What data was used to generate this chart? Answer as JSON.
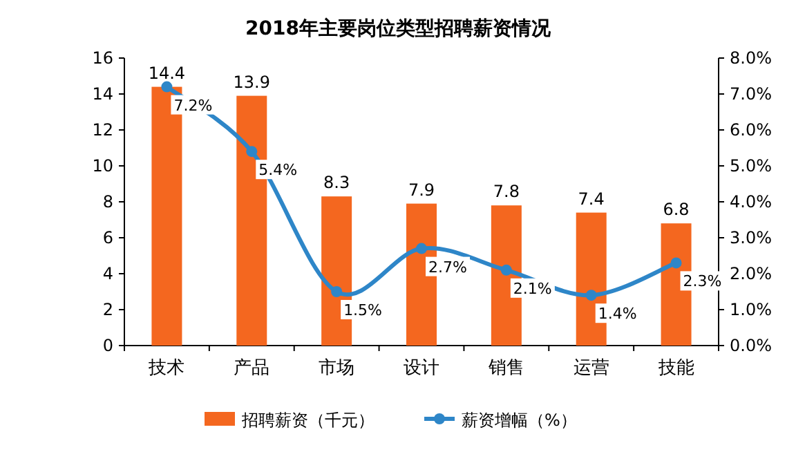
{
  "chart_data": {
    "type": "bar",
    "title": "2018年主要岗位类型招聘薪资情况",
    "categories": [
      "技术",
      "产品",
      "市场",
      "设计",
      "销售",
      "运营",
      "技能"
    ],
    "series": [
      {
        "name": "招聘薪资（千元）",
        "color": "#f4671f",
        "values": [
          14.4,
          13.9,
          8.3,
          7.9,
          7.8,
          7.4,
          6.8
        ],
        "value_labels": [
          "14.4",
          "13.9",
          "8.3",
          "7.9",
          "7.8",
          "7.4",
          "6.8"
        ]
      },
      {
        "name": "薪资增幅（%）",
        "type": "line",
        "axis": "y2",
        "color": "#2e86c8",
        "marker": "circle",
        "values": [
          7.2,
          5.4,
          1.5,
          2.7,
          2.1,
          1.4,
          2.3
        ],
        "value_labels": [
          "7.2%",
          "5.4%",
          "1.5%",
          "2.7%",
          "2.1%",
          "1.4%",
          "2.3%"
        ]
      }
    ],
    "ylim": [
      0,
      16
    ],
    "yticks": [
      0,
      2,
      4,
      6,
      8,
      10,
      12,
      14,
      16
    ],
    "y2lim": [
      0,
      8
    ],
    "y2ticks": [
      {
        "value": 0,
        "label": "0.0%"
      },
      {
        "value": 1,
        "label": "1.0%"
      },
      {
        "value": 2,
        "label": "2.0%"
      },
      {
        "value": 3,
        "label": "3.0%"
      },
      {
        "value": 4,
        "label": "4.0%"
      },
      {
        "value": 5,
        "label": "5.0%"
      },
      {
        "value": 6,
        "label": "6.0%"
      },
      {
        "value": 7,
        "label": "7.0%"
      },
      {
        "value": 8,
        "label": "8.0%"
      }
    ],
    "grid": false,
    "legend": "bottom"
  }
}
